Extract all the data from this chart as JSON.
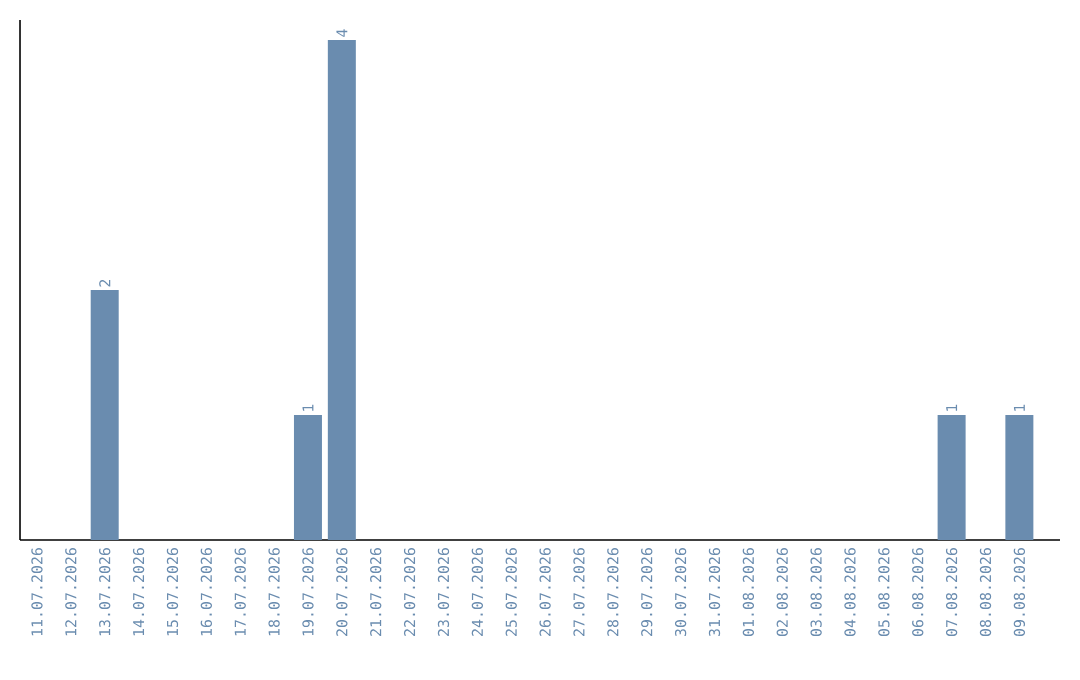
{
  "chart_data": {
    "type": "bar",
    "categories": [
      "11.07.2026",
      "12.07.2026",
      "13.07.2026",
      "14.07.2026",
      "15.07.2026",
      "16.07.2026",
      "17.07.2026",
      "18.07.2026",
      "19.07.2026",
      "20.07.2026",
      "21.07.2026",
      "22.07.2026",
      "23.07.2026",
      "24.07.2026",
      "25.07.2026",
      "26.07.2026",
      "27.07.2026",
      "28.07.2026",
      "29.07.2026",
      "30.07.2026",
      "31.07.2026",
      "01.08.2026",
      "02.08.2026",
      "03.08.2026",
      "04.08.2026",
      "05.08.2026",
      "06.08.2026",
      "07.08.2026",
      "08.08.2026",
      "09.08.2026"
    ],
    "values": [
      0,
      0,
      2,
      0,
      0,
      0,
      0,
      0,
      1,
      4,
      0,
      0,
      0,
      0,
      0,
      0,
      0,
      0,
      0,
      0,
      0,
      0,
      0,
      0,
      0,
      0,
      0,
      1,
      0,
      1
    ],
    "value_labels": [
      null,
      null,
      "2",
      null,
      null,
      null,
      null,
      null,
      "1",
      "4",
      null,
      null,
      null,
      null,
      null,
      null,
      null,
      null,
      null,
      null,
      null,
      null,
      null,
      null,
      null,
      null,
      null,
      "1",
      null,
      "1"
    ],
    "color": "#6a8caf",
    "tick_labels": "x",
    "grid": false
  }
}
